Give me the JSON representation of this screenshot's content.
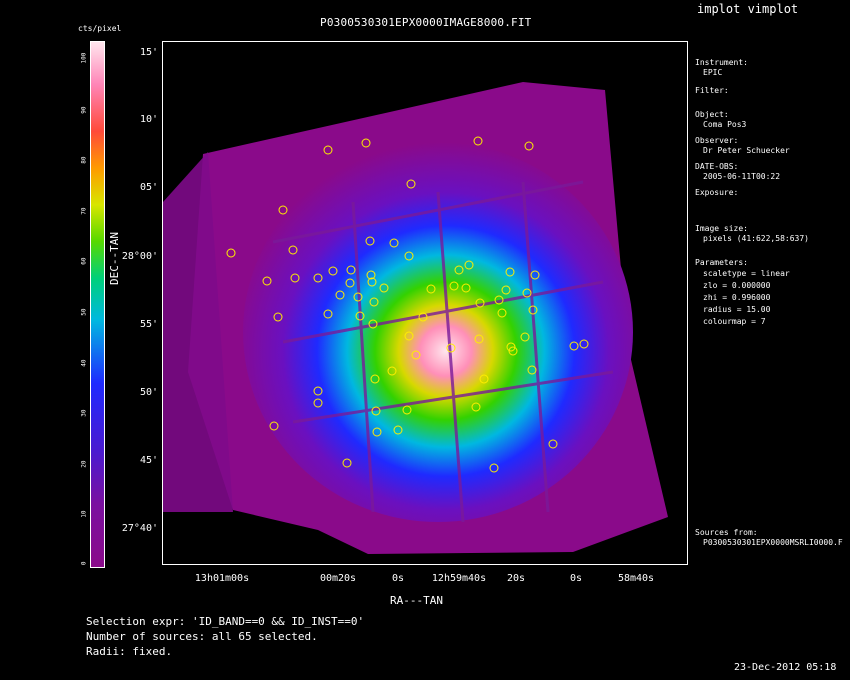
{
  "window": {
    "app_title": "implot vimplot",
    "timestamp": "23-Dec-2012 05:18"
  },
  "plot": {
    "title": "P0300530301EPX0000IMAGE8000.FIT",
    "colorbar_label": "cts/pixel",
    "colorbar_ticks": [
      "0",
      "10",
      "20",
      "30",
      "40",
      "50",
      "60",
      "70",
      "80",
      "90",
      "100"
    ],
    "ylabel": "DEC--TAN",
    "xlabel": "RA---TAN",
    "yticks": [
      "15'",
      "10'",
      "05'",
      "28°00'",
      "55'",
      "50'",
      "45'",
      "27°40'"
    ],
    "xticks": [
      "13h01m00s",
      "00m20s",
      "0s",
      "12h59m40s",
      "20s",
      "0s",
      "58m40s"
    ]
  },
  "sidebar": {
    "instrument_label": "Instrument:",
    "instrument_value": "EPIC",
    "filter_label": "Filter:",
    "object_label": "Object:",
    "object_value": "Coma Pos3",
    "observer_label": "Observer:",
    "observer_value": "Dr Peter Schuecker",
    "date_label": "DATE-OBS:",
    "date_value": "2005-06-11T00:22",
    "exposure_label": "Exposure:",
    "image_size_label": "Image size:",
    "image_size_value": "pixels (41:622,58:637)",
    "parameters_label": "Parameters:",
    "param_scaletype": "scaletype = linear",
    "param_zlo": "zlo = 0.000000",
    "param_zhi": "zhi = 0.996000",
    "param_radius": "radius = 15.00",
    "param_colourmap": "colourmap = 7",
    "sources_label": "Sources from:",
    "sources_value": "P0300530301EPX0000MSRLI0000.F"
  },
  "footer": {
    "selection_expr": "Selection expr: 'ID_BAND==0 && ID_INST==0'",
    "num_sources": "Number of sources: all 65 selected.",
    "radii": "Radii: fixed."
  },
  "colors": {
    "background": "#000000",
    "source_circle": "#ffee00"
  }
}
